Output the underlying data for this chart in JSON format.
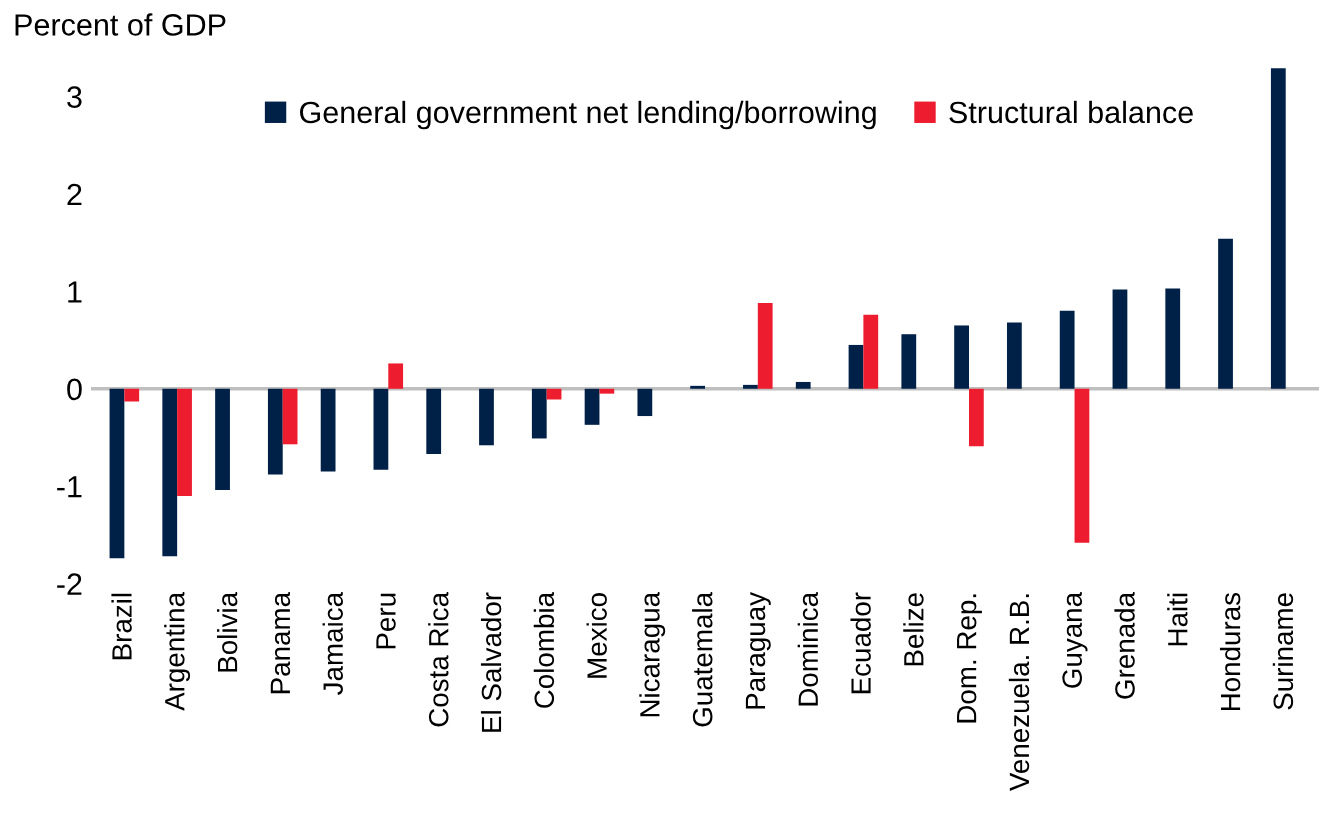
{
  "chart_data": {
    "type": "bar",
    "ylabel": "Percent of GDP",
    "categories": [
      "Brazil",
      "Argentina",
      "Bolivia",
      "Panama",
      "Jamaica",
      "Peru",
      "Costa Rica",
      "El Salvador",
      "Colombia",
      "Mexico",
      "Nicaragua",
      "Guatemala",
      "Paraguay",
      "Dominica",
      "Ecuador",
      "Belize",
      "Dom. Rep.",
      "Venezuela. R.B.",
      "Guyana",
      "Grenada",
      "Haiti",
      "Honduras",
      "Suriname"
    ],
    "series": [
      {
        "name": "General government net lending/borrowing",
        "color": "#002147",
        "values": [
          -1.74,
          -1.72,
          -1.04,
          -0.88,
          -0.85,
          -0.83,
          -0.67,
          -0.58,
          -0.51,
          -0.37,
          -0.28,
          0.03,
          0.04,
          0.07,
          0.45,
          0.56,
          0.65,
          0.68,
          0.8,
          1.02,
          1.03,
          1.54,
          3.29
        ]
      },
      {
        "name": "Structural balance",
        "color": "#ed1c2e",
        "values": [
          -0.13,
          -1.1,
          null,
          -0.57,
          null,
          0.26,
          null,
          null,
          -0.11,
          -0.05,
          null,
          null,
          0.88,
          null,
          0.76,
          null,
          -0.59,
          null,
          -1.58,
          null,
          null,
          null,
          null
        ]
      }
    ],
    "ylim": [
      -2,
      3.4
    ],
    "yticks": [
      -2,
      -1,
      0,
      1,
      2,
      3
    ],
    "legend": "top"
  }
}
